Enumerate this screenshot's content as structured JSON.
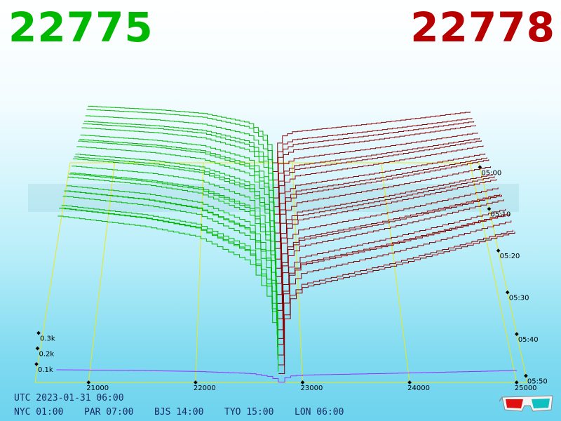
{
  "prices": {
    "bid": "22775",
    "ask": "22778",
    "bid_color": "#00b800",
    "ask_color": "#b80000"
  },
  "clock": {
    "utc": "UTC 2023-01-31 06:00",
    "cities": [
      "NYC 01:00",
      "PAR 07:00",
      "BJS 14:00",
      "TYO 15:00",
      "LON 06:00"
    ]
  },
  "chart_data": {
    "type": "line",
    "title": "",
    "x_axis": {
      "ticks": [
        "21000",
        "22000",
        "23000",
        "24000",
        "25000"
      ],
      "range": [
        20500,
        25100
      ]
    },
    "depth_axis": {
      "ticks": [
        "0.1k",
        "0.2k",
        "0.3k"
      ],
      "range": [
        0,
        0.35
      ]
    },
    "time_axis": {
      "ticks": [
        "05:00",
        "05:10",
        "05:20",
        "05:30",
        "05:40",
        "05:50"
      ],
      "range": [
        "04:57",
        "05:53"
      ]
    },
    "mid_price": 22776,
    "series": [
      {
        "side": "bid",
        "color": "#00b800",
        "x": [
          20700,
          21500,
          22000,
          22500,
          22700,
          22775
        ],
        "cum_depth_k": [
          0.31,
          0.29,
          0.27,
          0.22,
          0.14,
          0.0
        ]
      },
      {
        "side": "ask",
        "color": "#8b0000",
        "x": [
          22778,
          22850,
          23000,
          23800,
          24500,
          25000
        ],
        "cum_depth_k": [
          0.0,
          0.14,
          0.17,
          0.21,
          0.25,
          0.28
        ]
      }
    ],
    "colors": {
      "frame": "#e8e820",
      "bid_line": "#00b800",
      "ask_line": "#8b0000",
      "latest": "#9b30ff"
    },
    "grid": true
  },
  "glasses_icon": "3d-glasses-icon"
}
